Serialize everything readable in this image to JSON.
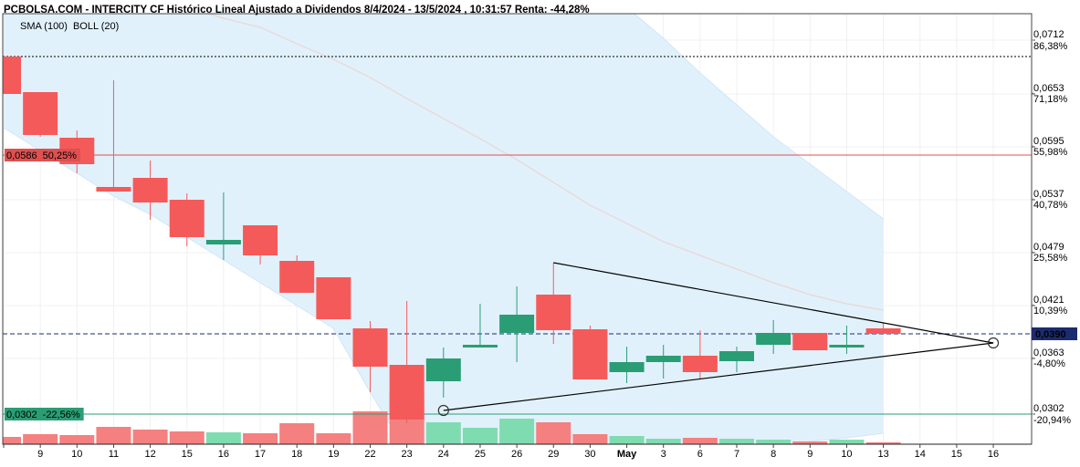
{
  "chart_data": {
    "type": "candlestick",
    "title": "PCBOLSA.COM - INTERCITY CF Histórico Lineal Ajustado a Dividendos 8/4/2024 - 13/5/2024 , 10:31:57 Renta: -44,28%",
    "categories": [
      null,
      "9",
      "10",
      "11",
      "12",
      "15",
      "16",
      "17",
      "18",
      "19",
      "22",
      "23",
      "24",
      "25",
      "26",
      "29",
      "30",
      "May",
      "3",
      "6",
      "7",
      "8",
      "9",
      "10",
      "13",
      "14",
      "15",
      "16"
    ],
    "open": [
      0.0694,
      0.0655,
      0.0605,
      0.0551,
      0.0561,
      0.0537,
      0.0488,
      0.0509,
      0.047,
      0.0452,
      0.0396,
      0.0356,
      0.0338,
      0.0375,
      0.0391,
      0.0433,
      0.0395,
      0.0348,
      0.0359,
      0.0366,
      0.036,
      0.0378,
      0.0391,
      0.0375,
      0.0396,
      null,
      null,
      null
    ],
    "high": [
      0.0694,
      0.0655,
      0.0613,
      0.0668,
      0.058,
      0.0544,
      0.0545,
      0.0509,
      0.0476,
      0.0452,
      0.0404,
      0.0426,
      0.0375,
      0.0423,
      0.0442,
      0.0468,
      0.0399,
      0.0376,
      0.0378,
      0.0394,
      0.0376,
      0.0405,
      0.0391,
      0.0399,
      0.0402,
      null,
      null,
      null
    ],
    "low": [
      0.0653,
      0.0606,
      0.0566,
      0.0546,
      0.0515,
      0.0486,
      0.0471,
      0.0466,
      0.0435,
      0.0406,
      0.0326,
      0.0292,
      0.032,
      0.0375,
      0.0359,
      0.0379,
      0.034,
      0.0336,
      0.0341,
      0.0341,
      0.0348,
      0.0368,
      0.0372,
      0.0368,
      0.039,
      null,
      null,
      null
    ],
    "close": [
      0.0653,
      0.0608,
      0.0576,
      0.0546,
      0.0534,
      0.0496,
      0.0493,
      0.0476,
      0.0435,
      0.0406,
      0.0354,
      0.0296,
      0.0363,
      0.0378,
      0.0411,
      0.0394,
      0.034,
      0.0359,
      0.0366,
      0.0348,
      0.0371,
      0.0391,
      0.0372,
      0.0378,
      0.039,
      null,
      null,
      null
    ],
    "volume": [
      8,
      11,
      10,
      19,
      16,
      14,
      13,
      12,
      23,
      12,
      36,
      56,
      24,
      18,
      28,
      24,
      11,
      9,
      6,
      7,
      6,
      5,
      3,
      5,
      2,
      null,
      null,
      null
    ],
    "up_color": "#2a9d74",
    "down_color": "#f55a5a",
    "volume_up_color": "#7fdcb0",
    "volume_down_color": "#f58080",
    "indicators": [
      {
        "name": "SMA (100)",
        "color": "#e8dada",
        "legend_color": "#a6d3f2",
        "values": [
          null,
          null,
          null,
          null,
          null,
          0.0748,
          0.0736,
          0.0726,
          0.0708,
          0.0691,
          0.0671,
          0.0648,
          0.0626,
          0.0604,
          0.0581,
          0.0556,
          0.0531,
          0.0511,
          0.0491,
          0.0476,
          0.0461,
          0.0446,
          0.0433,
          0.0423,
          0.0416,
          null,
          null,
          null
        ]
      },
      {
        "name": "BOLL (20)",
        "color": "#dff0fc",
        "legend_color": "#d2d2d2",
        "upper": [
          0.08,
          0.0795,
          0.079,
          0.0785,
          0.078,
          0.0775,
          0.077,
          0.0765,
          0.0762,
          0.076,
          0.0758,
          0.0757,
          0.0756,
          0.0755,
          0.0754,
          0.0752,
          0.0752,
          0.0748,
          0.0714,
          0.0676,
          0.0641,
          0.0606,
          0.0576,
          0.0546,
          0.0516,
          null,
          null,
          null
        ],
        "lower": [
          0.0616,
          0.0591,
          0.0566,
          0.0541,
          0.0521,
          0.0496,
          0.0471,
          0.0446,
          0.0421,
          0.0396,
          0.0326,
          0.026,
          0.0255,
          0.0252,
          0.025,
          0.025,
          0.0251,
          0.0253,
          0.0256,
          0.0259,
          0.0263,
          0.0267,
          0.0272,
          0.0276,
          0.0281,
          null,
          null,
          null
        ]
      }
    ],
    "ylim": [
      0.0269,
      0.0741
    ],
    "yticks": [
      {
        "value": 0.0712,
        "label": "0,0712"
      },
      {
        "value": 0.0653,
        "label": "0,0653"
      },
      {
        "value": 0.0595,
        "label": "0,0595"
      },
      {
        "value": 0.0537,
        "label": "0,0537"
      },
      {
        "value": 0.0479,
        "label": "0,0479"
      },
      {
        "value": 0.0421,
        "label": "0,0421"
      },
      {
        "value": 0.0363,
        "label": "0,0363"
      },
      {
        "value": 0.0302,
        "label": "0,0302"
      }
    ],
    "y2lim": [
      -29.58,
      93.98
    ],
    "y2ticks": [
      {
        "value": 86.38,
        "label": "86,38%"
      },
      {
        "value": 71.18,
        "label": "71,18%"
      },
      {
        "value": 55.98,
        "label": "55,98%"
      },
      {
        "value": 40.78,
        "label": "40,78%"
      },
      {
        "value": 25.58,
        "label": "25,58%"
      },
      {
        "value": 10.39,
        "label": "10,39%"
      },
      {
        "value": -4.8,
        "label": "-4,80%"
      },
      {
        "value": -20.94,
        "label": "-20,94%"
      }
    ],
    "grid": true,
    "levels": [
      {
        "value": 0.0586,
        "label": "0,0586",
        "pct_label": "50,25%",
        "color": "#e05050",
        "style": "solid",
        "side": "left"
      },
      {
        "value": 0.0302,
        "label": "0,0302",
        "pct_label": "-22,56%",
        "color": "#2a9d74",
        "style": "solid",
        "side": "left"
      },
      {
        "value": 0.039,
        "label": "0,0390",
        "color": "#1c2b6e",
        "style": "dashed",
        "side": "right"
      },
      {
        "value": 0.0694,
        "color": "#000000",
        "style": "dotted"
      }
    ],
    "trendlines": [
      {
        "x": [
          15,
          27
        ],
        "y": [
          0.0468,
          0.038
        ],
        "color": "#000000",
        "markers": false
      },
      {
        "x": [
          12,
          27
        ],
        "y": [
          0.0306,
          0.038
        ],
        "color": "#000000",
        "markers": true
      }
    ]
  }
}
